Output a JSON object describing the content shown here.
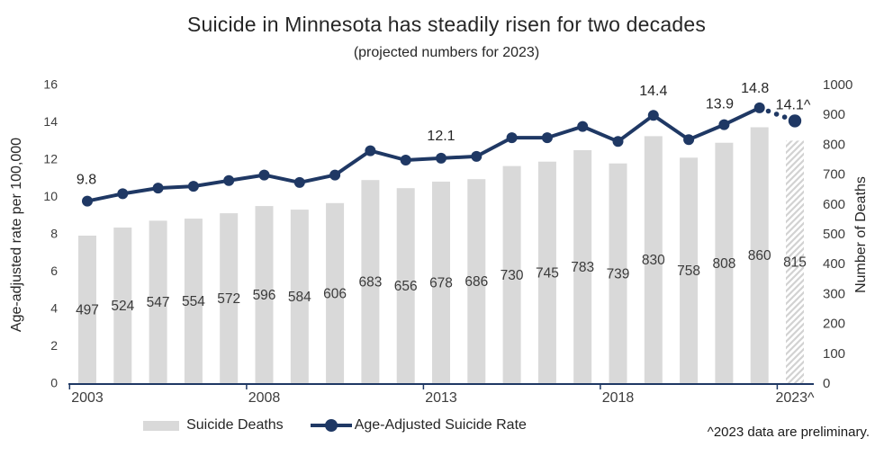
{
  "title": "Suicide in Minnesota has steadily risen for two decades",
  "subtitle": "(projected numbers for 2023)",
  "footnote": "^2023 data are preliminary.",
  "legend": {
    "bars_label": "Suicide Deaths",
    "line_label": "Age-Adjusted Suicide Rate"
  },
  "colors": {
    "line": "#1F3864",
    "bar": "#D9D9D9",
    "hatch": "#D2D2D2",
    "axis": "#1F3864",
    "text_dark": "#262626",
    "text_muted": "#3D3D3D"
  },
  "chart_data": {
    "type": "combo-bar-line",
    "years": [
      2003,
      2004,
      2005,
      2006,
      2007,
      2008,
      2009,
      2010,
      2011,
      2012,
      2013,
      2014,
      2015,
      2016,
      2017,
      2018,
      2019,
      2020,
      2021,
      2022,
      2023
    ],
    "x_axis": {
      "tick_labels": [
        "2003",
        "2008",
        "2013",
        "2018",
        "2023^"
      ],
      "tick_positions": [
        0,
        5,
        10,
        15,
        20
      ]
    },
    "left_axis": {
      "label": "Age-adjusted rate per 100,000",
      "min": 0,
      "max": 16,
      "step": 2
    },
    "right_axis": {
      "label": "Number of Deaths",
      "min": 0,
      "max": 1000,
      "step": 100
    },
    "series": [
      {
        "name": "Suicide Deaths",
        "type": "bar",
        "axis": "right",
        "values": [
          497,
          524,
          547,
          554,
          572,
          596,
          584,
          606,
          683,
          656,
          678,
          686,
          730,
          745,
          783,
          739,
          830,
          758,
          808,
          860,
          815
        ],
        "value_labels": [
          "497",
          "524",
          "547",
          "554",
          "572",
          "596",
          "584",
          "606",
          "683",
          "656",
          "678",
          "686",
          "730",
          "745",
          "783",
          "739",
          "830",
          "758",
          "808",
          "860",
          "815"
        ],
        "last_bar_hatched": true
      },
      {
        "name": "Age-Adjusted Suicide Rate",
        "type": "line",
        "axis": "left",
        "values": [
          9.8,
          10.2,
          10.5,
          10.6,
          10.9,
          11.2,
          10.8,
          11.2,
          12.5,
          12.0,
          12.1,
          12.2,
          13.2,
          13.2,
          13.8,
          13.0,
          14.4,
          13.1,
          13.9,
          14.8,
          14.1
        ],
        "last_segment_dotted": true,
        "point_labels": [
          {
            "index": 0,
            "text": "9.8",
            "dx": -1,
            "dy": -19
          },
          {
            "index": 10,
            "text": "12.1",
            "dx": 0,
            "dy": -20
          },
          {
            "index": 16,
            "text": "14.4",
            "dx": 0,
            "dy": -22
          },
          {
            "index": 18,
            "text": "13.9",
            "dx": -5,
            "dy": -18
          },
          {
            "index": 19,
            "text": "14.8",
            "dx": -5,
            "dy": -17
          },
          {
            "index": 20,
            "text": "14.1^",
            "dx": -2,
            "dy": -13
          }
        ]
      }
    ]
  }
}
